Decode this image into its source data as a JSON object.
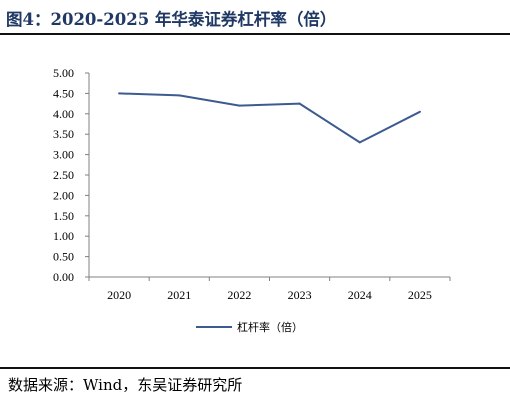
{
  "figure": {
    "title": "图4：2020-2025 年华泰证券杠杆率（倍）",
    "source": "数据来源：Wind，东吴证券研究所"
  },
  "chart_data": {
    "type": "line",
    "title": "",
    "xlabel": "",
    "ylabel": "",
    "categories": [
      "2020",
      "2021",
      "2022",
      "2023",
      "2024",
      "2025"
    ],
    "series": [
      {
        "name": "杠杆率（倍）",
        "values": [
          4.5,
          4.45,
          4.2,
          4.25,
          3.3,
          4.05
        ]
      }
    ],
    "ylim": [
      0,
      5
    ],
    "yticks": [
      "0.00",
      "0.50",
      "1.00",
      "1.50",
      "2.00",
      "2.50",
      "3.00",
      "3.50",
      "4.00",
      "4.50",
      "5.00"
    ],
    "grid": false,
    "legend_position": "bottom-center",
    "colors": {
      "series": "#3e5b8f",
      "axis": "#808080"
    }
  }
}
